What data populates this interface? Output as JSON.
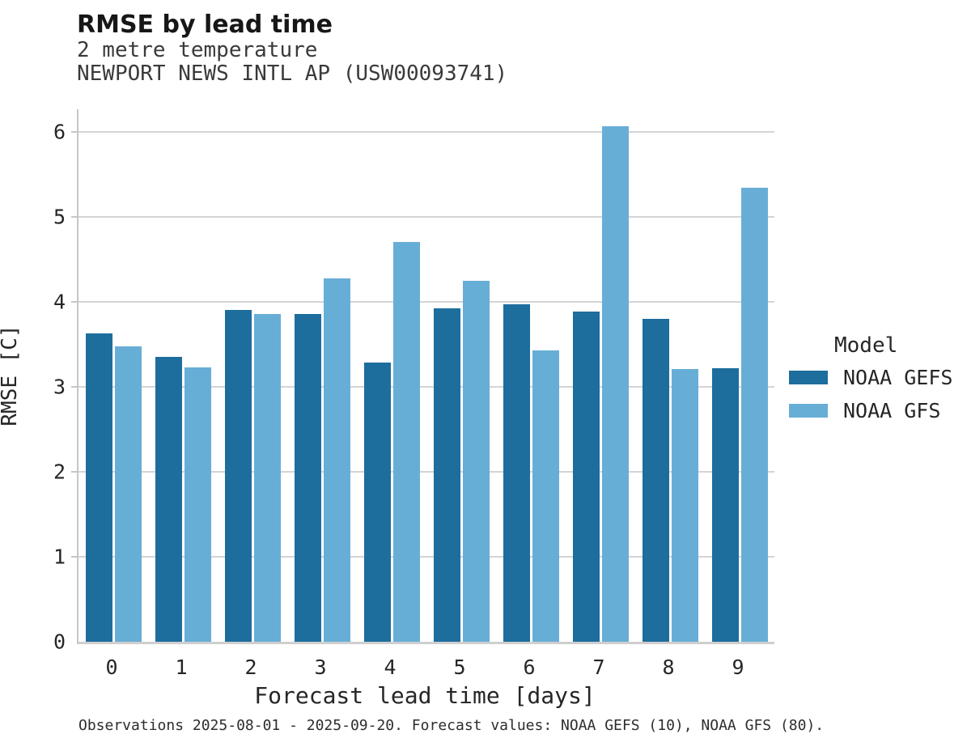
{
  "header": {
    "title": "RMSE by lead time",
    "subtitle_line1": "2 metre temperature",
    "subtitle_line2": "NEWPORT NEWS INTL AP (USW00093741)"
  },
  "footer": {
    "caption": "Observations 2025-08-01 - 2025-09-20. Forecast values: NOAA GEFS (10), NOAA GFS (80)."
  },
  "colors": {
    "gefs_dark_blue": "#1d6d9d",
    "gfs_light_blue": "#67aed7",
    "gridline_gray": "#d4d4d4",
    "spine_gray": "#c6c6c6",
    "text_dark": "#262626"
  },
  "chart_data": {
    "type": "bar",
    "title": "RMSE by lead time",
    "subtitle": [
      "2 metre temperature",
      "NEWPORT NEWS INTL AP (USW00093741)"
    ],
    "xlabel": "Forecast lead time [days]",
    "ylabel": "RMSE [C]",
    "categories": [
      "0",
      "1",
      "2",
      "3",
      "4",
      "5",
      "6",
      "7",
      "8",
      "9"
    ],
    "series": [
      {
        "name": "NOAA GEFS",
        "color": "#1d6d9d",
        "values": [
          3.63,
          3.35,
          3.91,
          3.86,
          3.29,
          3.93,
          3.97,
          3.89,
          3.8,
          3.22
        ]
      },
      {
        "name": "NOAA GFS",
        "color": "#67aed7",
        "values": [
          3.48,
          3.23,
          3.86,
          4.28,
          4.71,
          4.25,
          3.43,
          6.07,
          3.21,
          5.35
        ]
      }
    ],
    "ylim": [
      0,
      6.27
    ],
    "yticks": [
      0,
      1,
      2,
      3,
      4,
      5,
      6
    ],
    "grid": true,
    "legend_title": "Model",
    "legend_position": "right",
    "caption": "Observations 2025-08-01 - 2025-09-20. Forecast values: NOAA GEFS (10), NOAA GFS (80)."
  }
}
